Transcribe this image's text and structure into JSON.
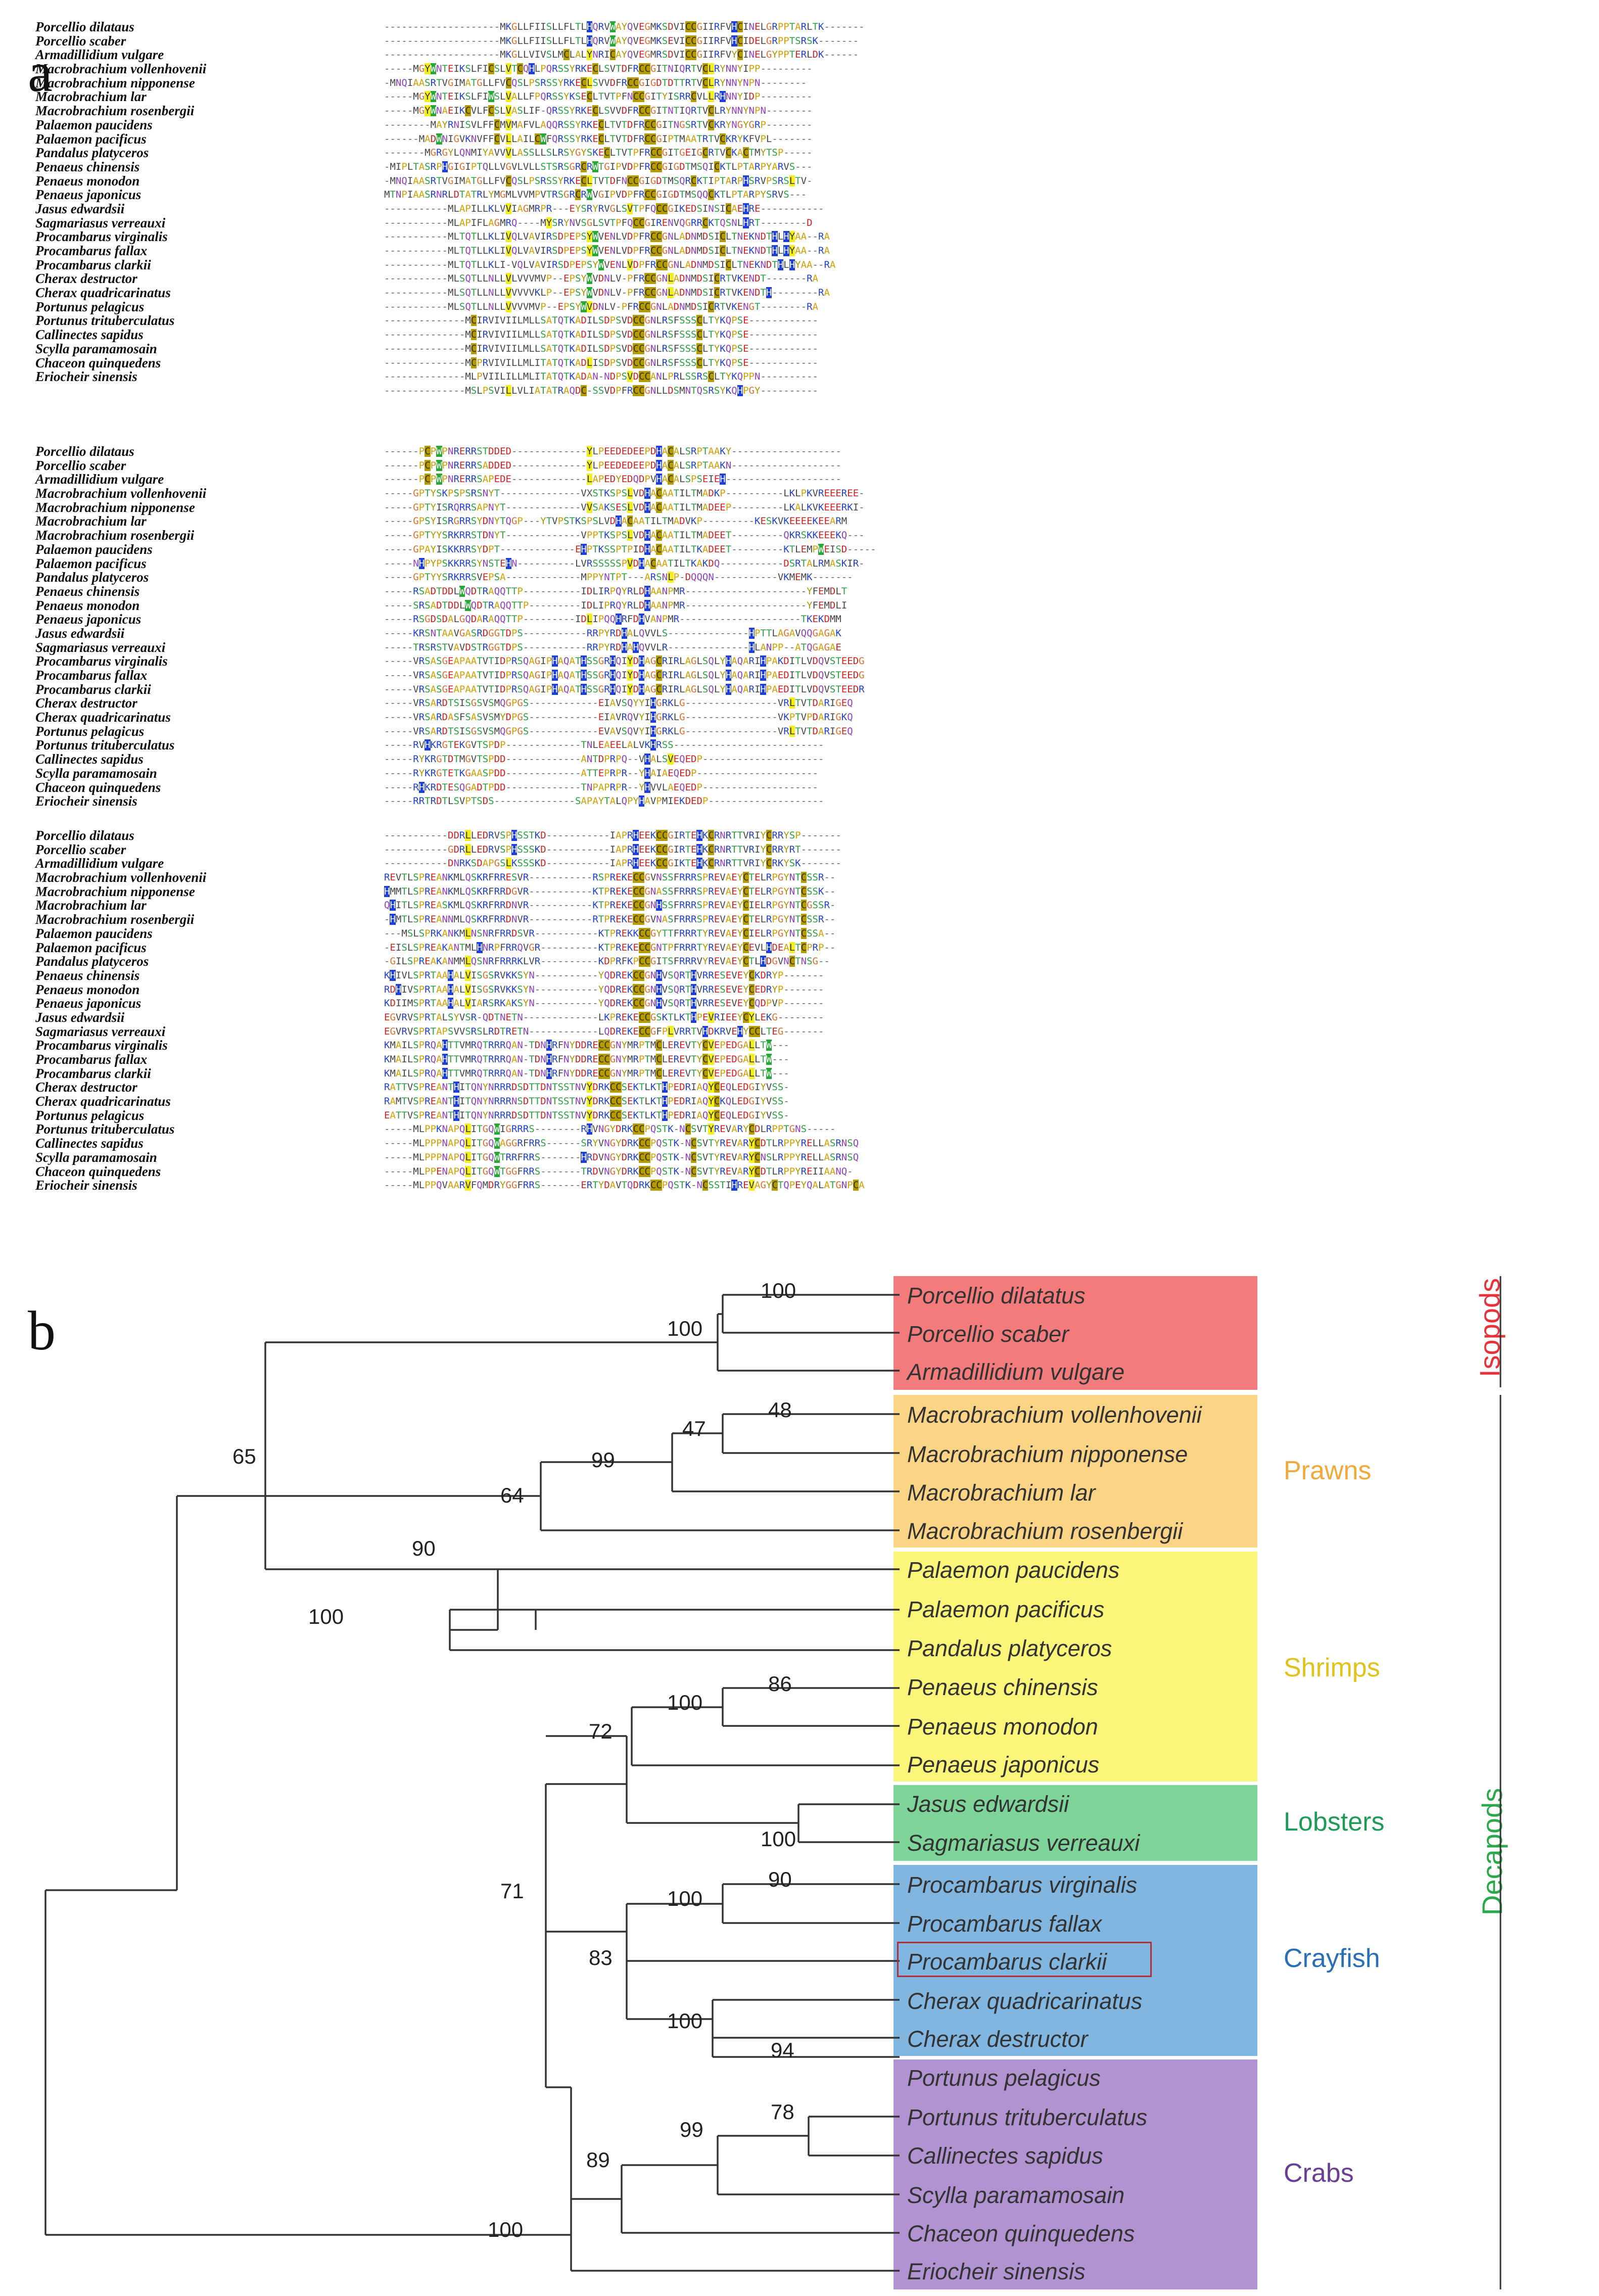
{
  "panel_a_label": "a",
  "panel_b_label": "b",
  "species": [
    "Porcellio dilataus",
    "Porcellio scaber",
    "Armadillidium vulgare",
    "Macrobrachium vollenhovenii",
    "Macrobrachium nipponense",
    "Macrobrachium lar",
    "Macrobrachium rosenbergii",
    "Palaemon paucidens",
    "Palaemon pacificus",
    "Pandalus platyceros",
    "Penaeus chinensis",
    "Penaeus monodon",
    "Penaeus japonicus",
    "Jasus edwardsii",
    "Sagmariasus verreauxi",
    "Procambarus virginalis",
    "Procambarus fallax",
    "Procambarus clarkii",
    "Cherax destructor",
    "Cherax quadricarinatus",
    "Portunus pelagicus",
    "Portunus trituberculatus",
    "Callinectes sapidus",
    "Scylla paramamosain",
    "Chaceon quinquedens",
    "Eriocheir sinensis"
  ],
  "alignment_blocks": [
    {
      "rows": [
        "--------------------MKGLLFIISLLFLTLHQRVWAYQVEGMKSDVICCGIIRFVHCINELGRPPTARLTK-------",
        "--------------------MKGLLFIISLLFLTLHQRVWAYQVEGMKSEVICCGIIRFVHCIDELGRPPTSRSK-------",
        "--------------------MKGLLVIVSLMCLALYNRICAYQVEGMRSDVICCGIIRFVYCINELGYPPTERLDK------",
        "-----MGYWNTEIKSLFICSLVTCQHLPQRSSYRKECLSVTDFRCCGITNIQRTVCLRYNNYIPP---------",
        "-MNQIAASRTVGIMATGLLFVCQSLPSRSSYRKECLSVVDFRCCGIGDTDTTRTVCLRYNNYNPN--------",
        "-----MGYWNTEIKSLFIWSLVALLFPQRSSYKSECLTVTPFNCCGITYISRRCVLLRHNNYIDP---------",
        "-----MGYWNAEIKCVLFCSLVASLIF-QRSSYRKECLSVVDFRCCGITNTIQRTVCLRYNNYNPN--------",
        "--------MAYRNISVLFFCMVMAFVLAQQRSSYRKECLTVTDFRCCGITNGSRTVCKRYNGYGRP--------",
        "------MADWNIGVKNVFFCVLLAILCWFQRSSYRKECLTVTDFRCCGIPTMAATRTVCKRYKFVPL-------",
        "-------MGRGYLQNMIYAVVVLASSLLSLRSYGYSKECLTVTPFRCCGITGEIGCRTVCKACTMYTSP-----",
        "-MIPLTASRPHGIGIPTQLLVGVLVLLSTSRSGRCRWTGIPVDPFRCCGIGDTMSQICKTLPTARPYARVS---",
        "-MNQIAASRTVGIMATGLLFVCQSLPSRSSYRKECLTVTDFNCCGIGDTMSQRCKTIPTARPHSRVPSRSLTV-",
        "MTNPIAASRNRLDTATRLYMGMLVVMPVTRSGRCRWVGIPVDPFRCCGIGDTMSQQCKTLPTARPYSRVS---",
        "-----------MLAPILLKLVVIAGMRPR---EYSRYRVGLSVTPFQCCGIKEDSINSICAEHRE-----------",
        "-----------MLAPIFLAGMRQ----MYSRYNVSGLSVTPFQCCGIRENVQGRRCKTQSNLHRT--------D",
        "-----------MLTQTLLKLIVQLVAVIRSDPEPSYWVENLVDPFRCCGNLADNMDSICLTNEKNDTHLHYAA--RA",
        "-----------MLTQTLLKLIVQLVAVIRSDPEPSYWVENLVDPFRCCGNLADNMDSICLTNEKNDTHLHYAA--RA",
        "-----------MLTQTLLKLI-VQLVAVIRSDPEPSYWVENLVDPFRCCGNLADNMDSICLTNEKNDTHLHYAA--RA",
        "-----------MLSQTLLNLLVLVVVMVP--EPSYWVDNLV-PFRCCGNLADNMDSICRTVKENDT-------RA",
        "-----------MLSQTLLNLLVVVVVKLP--EPSYWVDNLV-PFRCCGNLADNMDSICRTVKENDTH--------RA",
        "-----------MLSQTLLNLLVVVVMVP--EPSYWVDNLV-PFRCCGNLADNMDSICRTVKENGT--------RA",
        "--------------MCIRVIVIILMLLSATQTKADILSDPSVDCCGNLRSFSSSCLTYKQPSE------------",
        "--------------MCIRVIVIILMLLSATQTKADILSDPSVDCCGNLRSFSSSCLTYKQPSE------------",
        "--------------MCIRVIVIILMLLSATQTKADILSDPSVDCCGNLRSFSSSCLTYKQPSE------------",
        "--------------MCPRVIVILLMLITATQTKADLISDPSVDCCGNLRSFSSSCLTYKQPSE------------",
        "--------------MLPVIILILLMLITATQTKADAN-NDPSVDCCANLPRLSSRSCLTYKQPPN----------",
        "--------------MSLPSVILLVLIATATRAQDC-SSVDPFRCCGNLLDSMNTQSRSYKQHPGY----------"
      ]
    },
    {
      "rows": [
        "------PCPWPNRERRSTDDED-------------YLPEEDEDEEPDHACALSRPTAAKY-------------------",
        "------PCPWPNRERRSADDED-------------YLPEEDEDEEPDHACALSRPTAAKN-------------------",
        "------PCPWPNRERRSAPEDE-------------LAPEDYEDQDPVHACALSPSEIEH--------------------",
        "-----GPTYSKPSPSRSNYT--------------VXSTKSPSLVDHACAATILTMADKP----------LKLPKVREEEREE-",
        "-----GPTYISRQRRSAPNYT-------------VVSAKSESLVDHACAATILTMADEEP---------LKALKVKEEERKI-",
        "-----GPSYISRGRRSYDNYTQGP---YTVPSTKSPSLVDHACAATILTMADVKP---------KESKVKEEEEKEEARM",
        "-----GPTYYSRKRRSTDNYT-------------VPPTKSPSLVDHACAATILTMADEET---------QKRSKKEEEKQ---",
        "-----GPAYISKKRRSYDPT-------------EHPTKSSPTPIDHACAATILTKADEET---------KTLEMPWEISD-----",
        "-----NHPYPSKKRRSYNSTEHN----------LVRSSSSSPVDHACAATILTKAKDQ-----------DSRTALRMASKIR-",
        "-----GPTYYSRKRRSVEPSA-------------MPPYNTPT---ARSNLP-DQQQN-----------VKMEMK-------",
        "-----RSADTDDLWQDTRAQQTTP----------IDLIRPQYRLDHAANPMR---------------------YFEMDLT",
        "-----SRSADTDDLWQDTRAQQTTP---------IDLIPRQYRLDHAANPMR---------------------YFEMDLI",
        "-----RSGDSDALGQDARAQQTTP---------IDLIPQQHRFDHVANPMR---------------------TKEKDMM",
        "-----KRSNTAAVGASRDGGTDPS-----------RRPYRDHALQVVLS--------------HPTTLAGAVQQGAGAK",
        "-----TRSRSTVAVDSTRGGTDPS-----------RRPYRDHAHQVVLR--------------HLANPP--ATQGAGAE",
        "-----VRSASGEAPAATVTIDPRSQAGIPHAQATHSSGRHQIYDHAGCRIRLAGLSQLYHAQARIHPAKDITLVDQVSTEEDG",
        "-----VRSASGEAPAATVTIDPRSQAGIPHAQATHSSGRHQIYDHAGCRIRLAGLSQLYHAQARIHPAEDITLVDQVSTEEDG",
        "-----VRSASGEAPAATVTIDPRSQAGIPHAQATHSSGRHQIYDHAGCRIRLAGLSQLYHAQARIHPAEDITLVDQVSTEEDR",
        "-----VRSARDTSISGSVSMQGPGS------------EIAVSQYYIHGRKLG----------------VRLTVTDARIGEQ",
        "-----VRSARDASFSASVSMYDPGS------------EIAVRQVYIHGRKLG----------------VKPTVPDARIGKQ",
        "-----VRSARDTSISGSVSMQGPGS------------EVAVSQVYIHGRKLG----------------VRLTVTDARIGEQ",
        "-----RVHKRGTEKGVTSPDP-------------TNLEAEELALVKHRSS--------------------------",
        "-----RYKRGTDTMGVTSPDD-------------ANTDPRPQ--VHALSVEQEDP---------------------",
        "-----RYKRGTETKGAASPDD-------------ATTEPRPR--YHAIAEQEDP---------------------",
        "-----RHKRDTESQGADTPDD-------------TNPAPRPR--YHVVLAEQEDP--------------------",
        "-----RRTRDTLSVPTSDS--------------SAPAYTALQPYHAVPMIEKDEDP--------------------"
      ]
    },
    {
      "rows": [
        "-----------DDRLLEDRVSPHSSTKD-----------IAPRHEEKCCGIRTEHKCRNRTTVRIYCRRYSP-------",
        "-----------GDRLLEDRVSPHSSSKD-----------IAPRHEEKCCGIRTEHKCRNRTTVRIYCRRYRT-------",
        "-----------DNRKSDAPGSLKSSSKD-----------IAPRHEEKCCGIKTEHKCRNRTTVRIYCRKYSK-------",
        "REVTLSPREANKMLQSKRFRRESVR-----------RSPREKECCGVNSSFRRRSPREVAEYCTELRPGYNTCSSR--",
        "HMMTLSPREANKMLQSKRFRRDGVR-----------KTPREKECCGNASSFRRRSPREVAEYCTELRPGYNTCSSK--",
        "QHITLSPREASKMLQSKRFRRDNVR-----------KTPREKECCGNHSSFRRRSPREVAEYCIELRPGYNTCGSSR-",
        "-HMTLSPREANNMLQSKRFRRDNVR-----------RTPREKECCGVNASFRRRSPREVAEYCTELRPGYNTCSSR--",
        "---MSLSPRKANKMLNSNRFRRDSVR-----------KTPREKKCCGYTTFRRRTYREVAEYCIELRPGYNTCSSA--",
        "-EISLSPREAKANTMLHNRPFRRQVGR----------KTPREKECCGNTPFRRRTYREVAEYCEVLHDEALTCPRP--",
        "-GILSPREAKANMMLQSNRFRRRKLVR----------KDPRFKPCCGITSFRRRVYREVAEYCTLHDGVNCTNSG--",
        "KHIVLSPRTAAHALVISGSRVKKSYN-----------YQDREKCCGNHVSQRTHVRRESEVEYCKDRYP-------",
        "RDHIVSPRTAAHALVISGSRVKKSYN-----------YQDREKCCGNHVSQRTHVRRESEVEYCEDRYP-------",
        "KDIIMSPRTAAHALVIARSRKAKSYN-----------YQDREKCCGNHVSQRTHVRRESEVEYCQDPVP-------",
        "EGVRVSPRTALSYVSR-QDTNETN-------------LKPREKECCGSKTLKTHPEVRIEEYCYLEKG--------",
        "EGVRVSPRTAPSVVSRSLRDTRETN------------LQDREKECCGFPLVRRTVHDKRVEHYCCLTEG-------",
        "KMAILSPRQAHTTVMRQTRRRQAN-TDNHRFNYDDRECCGNYMRPTMCLEREVTYCVEPEDGALLTW---",
        "KMAILSPRQAHTTVMRQTRRRQAN-TDNHRFNYDDRECCGNYMRPTMCLEREVTYCVEPEDGALLTW---",
        "KMAILSPRQAHTTVMRQTRRRQAN-TDNHRFNYDDRECCGNYMRPTMCLEREVTYCVEPEDGALLTW---",
        "RATTVSPREANTHITQNYNRRRDSDTTDNTSSTNVYDRKCCSEKTLKTHPEDRIAQYCEQLEDGIYVSS-",
        "RAMTVSPREANTHITQNYNRRRNSDTTDNTSSTNVYDRKCCSEKTLKTHPEDRIAQYCKQLEDGIYVSS-",
        "EATTVSPREANTHITQNYNRRRDSDTTDNTSSTNVYDRKCCSEKTLKTHPEDRIAQYCEQLEDGIYVSS-",
        "-----MLPPKNAPQLITGQWIGRRRS--------RHVNGYDRKCCPQSTK-NCSVTYREVARYCDLRPPTGNS-----",
        "-----MLPPPNAPQLITGQWAGGRFRRS------SRYVNGYDRKCCPQSTK-NCSVTYREVARYCDTLRPPYRELLASRNSQ",
        "-----MLPPPNAPQLITGQWTRRFRRS-------HRDVNGYDRKCCPQSTK-NCSVTYREVARYCNSLRPPYRELLASRNSQ",
        "-----MLPPENAPQLITGQWTGGFRRS-------TRDVNGYDRKCCPQSTK-NCSVTYREVARYCDTLRPPYREIIAANQ-",
        "-----MLPPQVAARVFQMDRYGGFRRS-------ERTYDAVTQDRKCCPQSTK-NCSSTIHREVAGYCTQPEYQALATGNPCA"
      ]
    }
  ],
  "tree": {
    "leaves": [
      "Porcellio dilatatus",
      "Porcellio scaber",
      "Armadillidium vulgare",
      "Macrobrachium vollenhovenii",
      "Macrobrachium nipponense",
      "Macrobrachium lar",
      "Macrobrachium rosenbergii",
      "Palaemon paucidens",
      "Palaemon pacificus",
      "Pandalus platyceros",
      "Penaeus chinensis",
      "Penaeus monodon",
      "Penaeus japonicus",
      "Jasus edwardsii",
      "Sagmariasus verreauxi",
      "Procambarus virginalis",
      "Procambarus fallax",
      "Procambarus clarkii",
      "Cherax quadricarinatus",
      "Cherax destructor",
      "Portunus pelagicus",
      "Portunus trituberculatus",
      "Callinectes sapidus",
      "Scylla paramamosain",
      "Chaceon quinquedens",
      "Eriocheir sinensis"
    ],
    "bootstrap": [
      "100",
      "100",
      "65",
      "48",
      "47",
      "99",
      "64",
      "90",
      "100",
      "86",
      "100",
      "72",
      "100",
      "71",
      "90",
      "100",
      "83",
      "100",
      "94",
      "78",
      "99",
      "89",
      "100"
    ],
    "groups": [
      {
        "label": "Isopods",
        "color": "#e8323a"
      },
      {
        "label": "Prawns",
        "color": "#f2a93b"
      },
      {
        "label": "Shrimps",
        "color": "#f2d43b"
      },
      {
        "label": "Lobsters",
        "color": "#1e9b58"
      },
      {
        "label": "Crayfish",
        "color": "#2a6fb5"
      },
      {
        "label": "Crabs",
        "color": "#6b3e96"
      }
    ],
    "decapods_label": "Decapods",
    "decapods_color": "#2aa84a"
  }
}
